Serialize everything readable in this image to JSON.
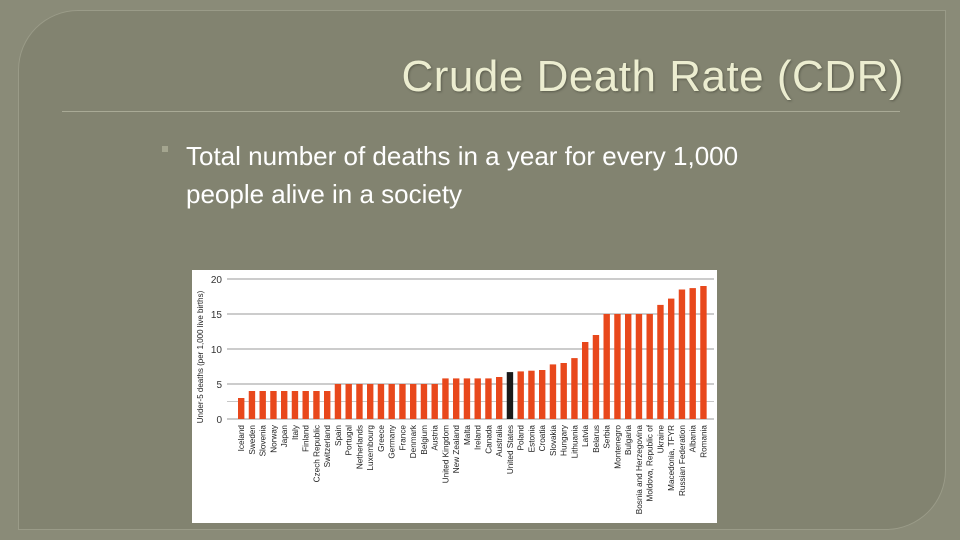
{
  "slide": {
    "title": "Crude Death Rate (CDR)",
    "body_text": "Total number of deaths in a year for every 1,000 people alive in a society"
  },
  "colors": {
    "background": "#8a8b78",
    "title": "#ecedd0",
    "bar": "#e8481c",
    "highlight_bar": "#1a1a1a"
  },
  "chart_data": {
    "type": "bar",
    "ylabel": "Under-5 deaths (per 1,000 live births)",
    "ylim": [
      0,
      20
    ],
    "yticks": [
      0,
      5,
      10,
      15,
      20
    ],
    "grid": true,
    "highlight": "United States",
    "categories": [
      "Iceland",
      "Sweden",
      "Slovenia",
      "Norway",
      "Japan",
      "Italy",
      "Finland",
      "Czech Republic",
      "Switzerland",
      "Spain",
      "Portugal",
      "Netherlands",
      "Luxembourg",
      "Greece",
      "Germany",
      "France",
      "Denmark",
      "Belgium",
      "Austria",
      "United Kingdom",
      "New Zealand",
      "Malta",
      "Ireland",
      "Canada",
      "Australia",
      "United States",
      "Poland",
      "Estonia",
      "Croatia",
      "Slovakia",
      "Hungary",
      "Lithuania",
      "Latvia",
      "Belarus",
      "Serbia",
      "Montenegro",
      "Bulgaria",
      "Bosnia and Herzegovina",
      "Moldova, Republic of",
      "Ukraine",
      "Macedonia, TFYR",
      "Russian Federation",
      "Albania",
      "Romania"
    ],
    "values": [
      3,
      4,
      4,
      4,
      4,
      4,
      4,
      4,
      4,
      5,
      5,
      5,
      5,
      5,
      5,
      5,
      5,
      5,
      5,
      5.8,
      5.8,
      5.8,
      5.8,
      5.8,
      6,
      6.7,
      6.8,
      6.9,
      7,
      7.8,
      8,
      8.7,
      11,
      12,
      15,
      15,
      15,
      15,
      15,
      16.3,
      17.2,
      18.5,
      18.7,
      19
    ]
  }
}
